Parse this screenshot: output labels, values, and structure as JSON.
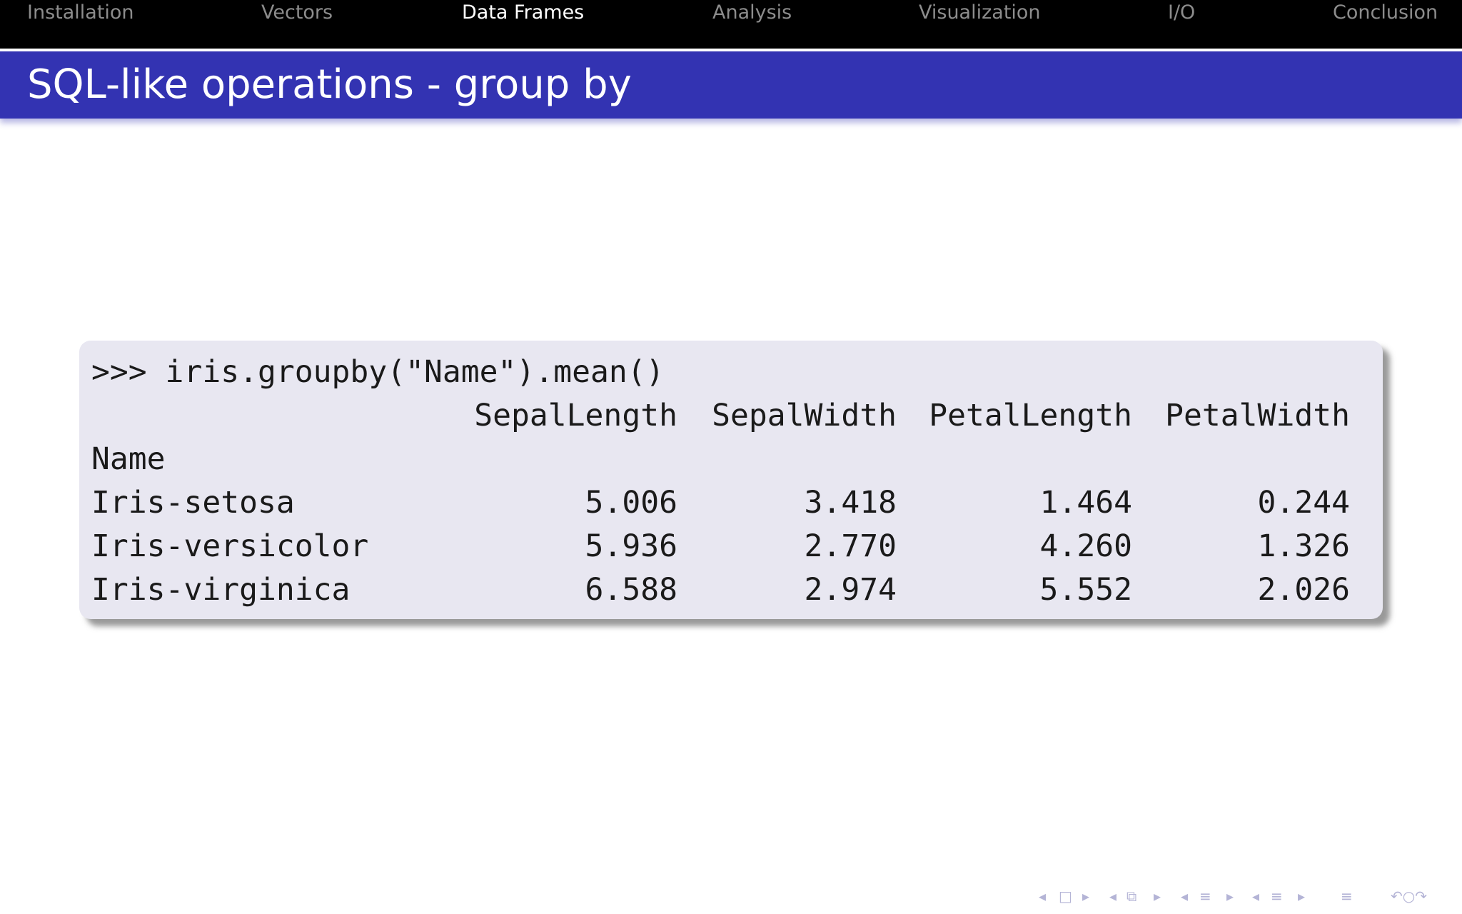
{
  "nav": {
    "items": [
      {
        "label": "Installation"
      },
      {
        "label": "Vectors"
      },
      {
        "label": "Data Frames"
      },
      {
        "label": "Analysis"
      },
      {
        "label": "Visualization"
      },
      {
        "label": "I/O"
      },
      {
        "label": "Conclusion"
      }
    ],
    "active": "Data Frames"
  },
  "slide": {
    "title": "SQL-like operations - group by"
  },
  "code": {
    "command": ">>> iris.groupby(\"Name\").mean()",
    "headers": [
      "SepalLength",
      "SepalWidth",
      "PetalLength",
      "PetalWidth"
    ],
    "index_name": "Name",
    "rows": [
      {
        "name": "Iris-setosa",
        "values": [
          "5.006",
          "3.418",
          "1.464",
          "0.244"
        ]
      },
      {
        "name": "Iris-versicolor",
        "values": [
          "5.936",
          "2.770",
          "4.260",
          "1.326"
        ]
      },
      {
        "name": "Iris-virginica",
        "values": [
          "6.588",
          "2.974",
          "5.552",
          "2.026"
        ]
      }
    ]
  },
  "footer": {
    "icons": {
      "frame_prev": "◂",
      "frame": "□",
      "frame_next": "▸",
      "slide_prev": "◂",
      "slide": "⧉",
      "slide_next": "▸",
      "section_prev": "◂",
      "section": "≡",
      "section_next": "▸",
      "subsection_prev": "◂",
      "subsection": "≡",
      "subsection_next": "▸",
      "align": "≡",
      "search": "↶○↷"
    }
  }
}
